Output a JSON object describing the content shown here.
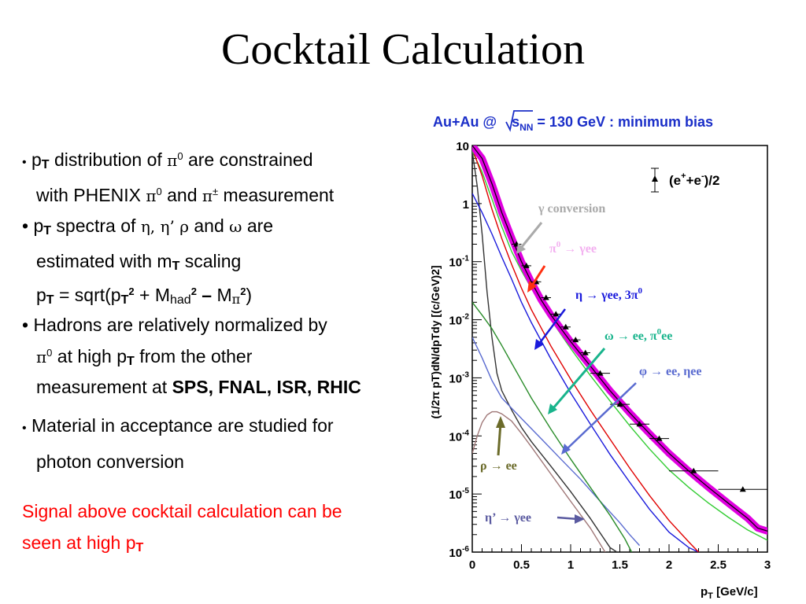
{
  "slide": {
    "title": "Cocktail Calculation",
    "b1": {
      "p": "p",
      "T": "T",
      "a": " distribution of ",
      "pi0": "π",
      "zero": "0",
      "b": " are constrained",
      "c": "with PHENIX ",
      "pi0b": "π",
      "zerob": "0",
      "d": " and ",
      "pipm": "π",
      "pm": "±",
      "e": " measurement"
    },
    "b2": {
      "p": "p",
      "T": "T",
      "a": " spectra of ",
      "greek": "η, η’ ρ",
      "b": " and ",
      "omega": "ω",
      "c": " are",
      "l2a": "estimated with m",
      "l2T": "T",
      "l2b": " scaling",
      "l3p": "p",
      "l3T": "T",
      "l3a": " = sqrt(p",
      "l3T2": "T",
      "l3sq": "2",
      "l3b": " + M",
      "l3had": "had",
      "l3sq2": "2",
      "l3dash": " – ",
      "l3M": "M",
      "l3pi": "π",
      "l3sq3": "2",
      "l3close": ")"
    },
    "b3": {
      "a": "Hadrons are relatively normalized by",
      "pi": "π",
      "zero": "0",
      "b": " at high p",
      "T": "T",
      "c": " from the other",
      "d": "measurement at ",
      "bold": "SPS, FNAL, ISR, RHIC"
    },
    "b4": {
      "a": "Material in acceptance are studied for",
      "b": "photon conversion"
    },
    "red": {
      "a": "Signal above cocktail calculation can  be",
      "b": "seen at high p",
      "T": "T"
    }
  },
  "chart_data": {
    "type": "line",
    "title": "Au+Au @ √sNN = 130 GeV : minimum bias",
    "title_parts": {
      "a": "Au+Au @ ",
      "s": "s",
      "nn": "NN",
      "b": " = 130 GeV : minimum bias"
    },
    "xlabel": "pT [GeV/c]",
    "xlabel_parts": {
      "p": "p",
      "T": "T",
      "rest": " [GeV/c]"
    },
    "ylabel": "(1/2π pT)dN/dpTdy [(c/GeV)2]",
    "xlim": [
      0,
      3
    ],
    "ylim": [
      1e-06,
      10
    ],
    "yscale": "log",
    "xticks": [
      "0",
      "0.5",
      "1",
      "1.5",
      "2",
      "2.5",
      "3"
    ],
    "yticks": [
      {
        "base": "10",
        "exp": ""
      },
      {
        "base": "1",
        "exp": ""
      },
      {
        "base": "10",
        "exp": "-1"
      },
      {
        "base": "10",
        "exp": "-2"
      },
      {
        "base": "10",
        "exp": "-3"
      },
      {
        "base": "10",
        "exp": "-4"
      },
      {
        "base": "10",
        "exp": "-5"
      },
      {
        "base": "10",
        "exp": "-6"
      }
    ],
    "legend": {
      "label": "(e+e-)/2",
      "a": "(e",
      "sup1": "+",
      "b": "+e",
      "sup2": "-",
      "c": ")/2"
    },
    "data_points": [
      {
        "x": 0.45,
        "y": 0.2,
        "xerr": 0.05
      },
      {
        "x": 0.55,
        "y": 0.085,
        "xerr": 0.05
      },
      {
        "x": 0.65,
        "y": 0.045,
        "xerr": 0.05
      },
      {
        "x": 0.75,
        "y": 0.024,
        "xerr": 0.05
      },
      {
        "x": 0.85,
        "y": 0.0125,
        "xerr": 0.05
      },
      {
        "x": 0.95,
        "y": 0.0075,
        "xerr": 0.05
      },
      {
        "x": 1.05,
        "y": 0.0045,
        "xerr": 0.05
      },
      {
        "x": 1.15,
        "y": 0.0027,
        "xerr": 0.05
      },
      {
        "x": 1.3,
        "y": 0.0012,
        "xerr": 0.1
      },
      {
        "x": 1.5,
        "y": 0.00035,
        "xerr": 0.1
      },
      {
        "x": 1.7,
        "y": 0.00016,
        "xerr": 0.1
      },
      {
        "x": 1.9,
        "y": 9e-05,
        "xerr": 0.1
      },
      {
        "x": 2.25,
        "y": 2.5e-05,
        "xerr": 0.25
      },
      {
        "x": 2.75,
        "y": 1.2e-05,
        "xerr": 0.25
      }
    ],
    "series": [
      {
        "color": "#333333",
        "points": [
          [
            0,
            8
          ],
          [
            0.05,
            2
          ],
          [
            0.1,
            0.3
          ],
          [
            0.15,
            0.03
          ],
          [
            0.2,
            0.005
          ],
          [
            0.25,
            0.0012
          ],
          [
            0.3,
            0.0006
          ],
          [
            0.4,
            0.00028
          ],
          [
            0.5,
            0.00014
          ],
          [
            0.6,
            8e-05
          ],
          [
            0.8,
            3e-05
          ],
          [
            1.0,
            1.1e-05
          ],
          [
            1.2,
            3.8e-06
          ],
          [
            1.4,
            1.2e-06
          ],
          [
            1.47,
            1e-06
          ]
        ]
      },
      {
        "color": "#a07878",
        "points": [
          [
            0,
            5e-05
          ],
          [
            0.05,
            0.0001
          ],
          [
            0.1,
            0.00017
          ],
          [
            0.15,
            0.00023
          ],
          [
            0.2,
            0.00026
          ],
          [
            0.25,
            0.00026
          ],
          [
            0.3,
            0.00024
          ],
          [
            0.4,
            0.00018
          ],
          [
            0.5,
            0.00011
          ],
          [
            0.6,
            6.5e-05
          ],
          [
            0.8,
            2.2e-05
          ],
          [
            1.0,
            7.5e-06
          ],
          [
            1.2,
            2.6e-06
          ],
          [
            1.35,
            1e-06
          ]
        ]
      },
      {
        "color": "#5a6bd0",
        "points": [
          [
            0,
            0.005
          ],
          [
            0.1,
            0.0022
          ],
          [
            0.2,
            0.0009
          ],
          [
            0.3,
            0.00045
          ],
          [
            0.5,
            0.0002
          ],
          [
            0.7,
            9e-05
          ],
          [
            0.9,
            4e-05
          ],
          [
            1.1,
            1.8e-05
          ],
          [
            1.3,
            7.5e-06
          ],
          [
            1.5,
            3.2e-06
          ],
          [
            1.6,
            2e-06
          ],
          [
            1.7,
            1.3e-06
          ]
        ]
      },
      {
        "color": "#2a8c2a",
        "points": [
          [
            0,
            0.02
          ],
          [
            0.1,
            0.012
          ],
          [
            0.2,
            0.007
          ],
          [
            0.3,
            0.0036
          ],
          [
            0.4,
            0.0018
          ],
          [
            0.5,
            0.0009
          ],
          [
            0.6,
            0.00045
          ],
          [
            0.8,
            0.00013
          ],
          [
            1.0,
            4e-05
          ],
          [
            1.2,
            1.3e-05
          ],
          [
            1.4,
            4.3e-06
          ],
          [
            1.55,
            1.7e-06
          ],
          [
            1.62,
            1e-06
          ]
        ]
      },
      {
        "color": "#1a1adc",
        "points": [
          [
            0,
            1.5
          ],
          [
            0.1,
            0.7
          ],
          [
            0.2,
            0.3
          ],
          [
            0.3,
            0.12
          ],
          [
            0.4,
            0.05
          ],
          [
            0.5,
            0.02
          ],
          [
            0.6,
            0.009
          ],
          [
            0.8,
            0.0021
          ],
          [
            1.0,
            0.00055
          ],
          [
            1.2,
            0.00016
          ],
          [
            1.4,
            4.8e-05
          ],
          [
            1.6,
            1.6e-05
          ],
          [
            1.8,
            5.5e-06
          ],
          [
            2.0,
            2.2e-06
          ],
          [
            2.2,
            1.2e-06
          ],
          [
            2.3,
            1e-06
          ]
        ]
      },
      {
        "color": "#33cc33",
        "points": [
          [
            0,
            8
          ],
          [
            0.1,
            3.5
          ],
          [
            0.2,
            1.2
          ],
          [
            0.3,
            0.4
          ],
          [
            0.4,
            0.15
          ],
          [
            0.5,
            0.07
          ],
          [
            0.6,
            0.035
          ],
          [
            0.8,
            0.01
          ],
          [
            1.0,
            0.0032
          ],
          [
            1.2,
            0.0011
          ],
          [
            1.4,
            0.0004
          ],
          [
            1.6,
            0.00015
          ],
          [
            1.8,
            6e-05
          ],
          [
            2.0,
            2.6e-05
          ],
          [
            2.2,
            1.3e-05
          ],
          [
            2.4,
            7e-06
          ],
          [
            2.6,
            4e-06
          ],
          [
            2.8,
            2.4e-06
          ],
          [
            3.0,
            1.6e-06
          ]
        ]
      },
      {
        "color": "#e00000",
        "points": [
          [
            0,
            9
          ],
          [
            0.1,
            3
          ],
          [
            0.2,
            0.8
          ],
          [
            0.3,
            0.25
          ],
          [
            0.4,
            0.09
          ],
          [
            0.5,
            0.035
          ],
          [
            0.6,
            0.015
          ],
          [
            0.8,
            0.0035
          ],
          [
            1.0,
            0.00095
          ],
          [
            1.2,
            0.00028
          ],
          [
            1.4,
            8.8e-05
          ],
          [
            1.6,
            2.8e-05
          ],
          [
            1.8,
            9.5e-06
          ],
          [
            2.0,
            3.5e-06
          ],
          [
            2.2,
            1.5e-06
          ],
          [
            2.3,
            1e-06
          ]
        ]
      },
      {
        "color": "#e000e0",
        "band": true,
        "points": [
          [
            0,
            10
          ],
          [
            0.1,
            6
          ],
          [
            0.2,
            2.2
          ],
          [
            0.3,
            0.7
          ],
          [
            0.4,
            0.26
          ],
          [
            0.5,
            0.1
          ],
          [
            0.6,
            0.045
          ],
          [
            0.7,
            0.022
          ],
          [
            0.8,
            0.012
          ],
          [
            1.0,
            0.0042
          ],
          [
            1.2,
            0.0016
          ],
          [
            1.4,
            0.0006
          ],
          [
            1.6,
            0.00025
          ],
          [
            1.8,
            0.00011
          ],
          [
            2.0,
            5e-05
          ],
          [
            2.2,
            2.5e-05
          ],
          [
            2.4,
            1.3e-05
          ],
          [
            2.6,
            7e-06
          ],
          [
            2.8,
            3.8e-06
          ],
          [
            2.9,
            2.6e-06
          ],
          [
            3.0,
            2.3e-06
          ]
        ]
      }
    ],
    "annotations": [
      {
        "id": "gamma",
        "text": "γ conversion",
        "color": "#aaaaaa"
      },
      {
        "id": "pi0",
        "text": "π0 → γee",
        "a": "π",
        "sup": "0",
        "b": " → γee",
        "color": "#f3b0f0"
      },
      {
        "id": "eta",
        "text": "η → γee, 3π0",
        "a": "η → γee, 3π",
        "sup": "0",
        "color": "#1a1adc"
      },
      {
        "id": "omega",
        "text": "ω → ee, π0ee",
        "a": "ω → ee, π",
        "sup": "0",
        "b": "ee",
        "color": "#19b48c"
      },
      {
        "id": "phi",
        "text": "φ → ee, ηee",
        "color": "#5a6bd0"
      },
      {
        "id": "rho",
        "text": "ρ → ee",
        "color": "#6b6b2a"
      },
      {
        "id": "etap",
        "text": "η’ → γee",
        "color": "#5a5aa0"
      }
    ]
  }
}
